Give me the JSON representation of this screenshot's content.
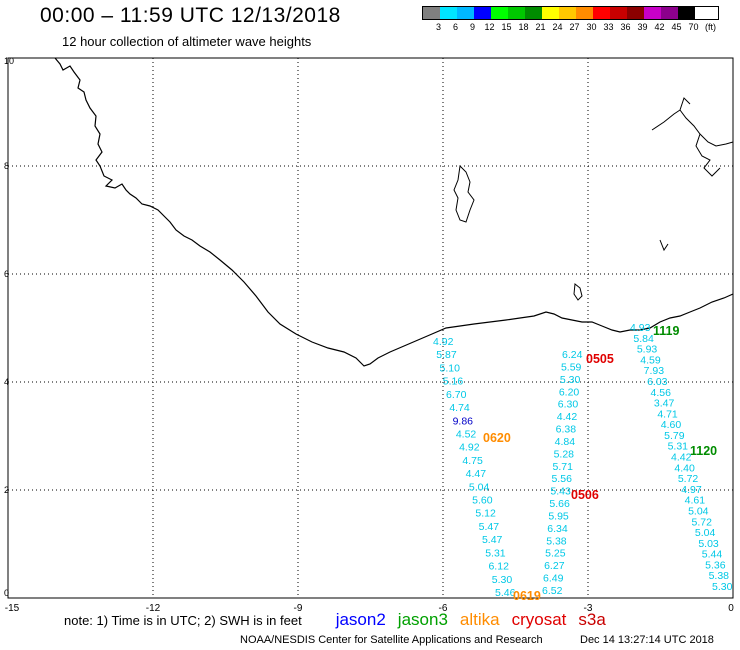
{
  "header": {
    "title": "00:00 – 11:59 UTC 12/13/2018",
    "subtitle": "12 hour collection of altimeter wave heights"
  },
  "color_scale": {
    "unit_label": "(ft)",
    "labels": [
      "3",
      "6",
      "9",
      "12",
      "15",
      "18",
      "21",
      "24",
      "27",
      "30",
      "33",
      "36",
      "39",
      "42",
      "45",
      "70",
      "(ft)"
    ],
    "colors": [
      "#808080",
      "#00e5ff",
      "#00b8ff",
      "#0000ff",
      "#00ff00",
      "#00c800",
      "#008c00",
      "#ffff00",
      "#ffc800",
      "#ff8c00",
      "#ff0000",
      "#c80000",
      "#8b0000",
      "#c800c8",
      "#8c008c",
      "#000000"
    ]
  },
  "axes": {
    "x_ticks": [
      "-15",
      "-12",
      "-9",
      "-6",
      "-3",
      "0"
    ],
    "y_ticks": [
      "0",
      "2",
      "4",
      "6",
      "8",
      "10"
    ]
  },
  "tracks": [
    {
      "name": "cyan-track-1",
      "color": "#00c8e6",
      "values": [
        "4.92",
        "5.87",
        "5.10",
        "5.16",
        "6.70",
        "4.74",
        "9.86",
        "4.52",
        "4.92",
        "4.75",
        "4.47",
        "5.04",
        "5.60",
        "5.12",
        "5.47",
        "5.47",
        "5.31",
        "6.12",
        "5.30",
        "5.46"
      ],
      "highlight_index": 6,
      "highlight_color": "#0000c8"
    },
    {
      "name": "cyan-track-2",
      "color": "#00c8e6",
      "values": [
        "6.24",
        "5.59",
        "5.30",
        "6.20",
        "6.30",
        "4.42",
        "6.38",
        "4.84",
        "5.28",
        "5.71",
        "5.56",
        "5.43",
        "5.66",
        "5.95",
        "6.34",
        "5.38",
        "5.25",
        "6.27",
        "6.49",
        "6.52"
      ]
    },
    {
      "name": "cyan-track-3",
      "color": "#00c8e6",
      "values": [
        "4.93",
        "5.84",
        "5.93",
        "4.59",
        "7.93",
        "6.03",
        "4.56",
        "3.47",
        "4.71",
        "4.60",
        "5.79",
        "5.31",
        "4.42",
        "4.40",
        "5.72",
        "4.97",
        "4.61",
        "5.04",
        "5.72",
        "5.04",
        "5.03",
        "5.44",
        "5.36",
        "5.38",
        "5.30"
      ]
    }
  ],
  "time_labels": [
    {
      "text": "0505",
      "color": "#e00000"
    },
    {
      "text": "0506",
      "color": "#e00000"
    },
    {
      "text": "0620",
      "color": "#ff8c00"
    },
    {
      "text": "0619",
      "color": "#ff8c00"
    },
    {
      "text": "1119",
      "color": "#008c00"
    },
    {
      "text": "1120",
      "color": "#008c00"
    }
  ],
  "footer": {
    "note": "note: 1) Time is in UTC; 2) SWH is in feet",
    "satellites": [
      {
        "label": "jason2",
        "color": "#0000ff"
      },
      {
        "label": "jason3",
        "color": "#00a000"
      },
      {
        "label": "altika",
        "color": "#ff8c00"
      },
      {
        "label": "cryosat",
        "color": "#e00000"
      },
      {
        "label": "s3a",
        "color": "#c80000"
      }
    ],
    "credit": "NOAA/NESDIS Center for Satellite Applications and Research",
    "timestamp": "Dec 14 13:27:14 UTC 2018"
  },
  "map_style": {
    "coast_color": "#000000",
    "grid_color": "#000000"
  }
}
